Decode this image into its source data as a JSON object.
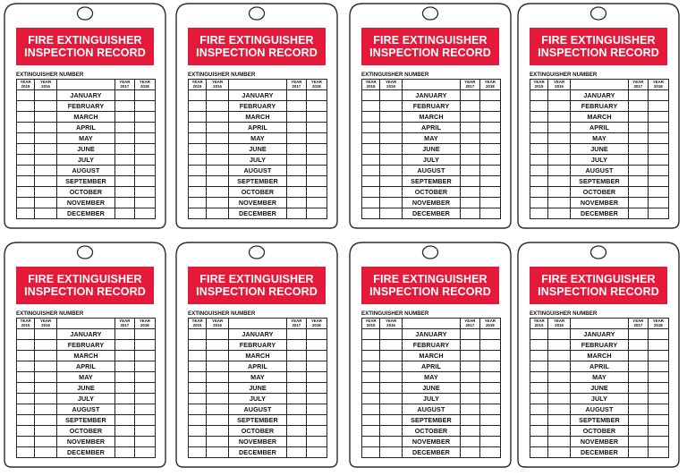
{
  "sheet": {
    "background": "#ffffff",
    "banner_color": "#e5193a",
    "tag_outline_color": "#2b2b2b"
  },
  "tag": {
    "banner_line_1": "FIRE EXTINGUISHER",
    "banner_line_2": "INSPECTION RECORD",
    "extinguisher_number_label": "EXTINGUISHER NUMBER",
    "year_headers": [
      [
        "YEAR",
        "2015"
      ],
      [
        "YEAR",
        "2016"
      ],
      [
        "",
        ""
      ],
      [
        "YEAR",
        "2017"
      ],
      [
        "YEAR",
        "2018"
      ]
    ],
    "months": [
      "JANUARY",
      "FEBRUARY",
      "MARCH",
      "APRIL",
      "MAY",
      "JUNE",
      "JULY",
      "AUGUST",
      "SEPTEMBER",
      "OCTOBER",
      "NOVEMBER",
      "DECEMBER"
    ]
  },
  "tags": [
    {
      "id": "tag-1"
    },
    {
      "id": "tag-2"
    },
    {
      "id": "tag-3"
    },
    {
      "id": "tag-4"
    },
    {
      "id": "tag-5"
    },
    {
      "id": "tag-6"
    },
    {
      "id": "tag-7"
    },
    {
      "id": "tag-8"
    }
  ]
}
